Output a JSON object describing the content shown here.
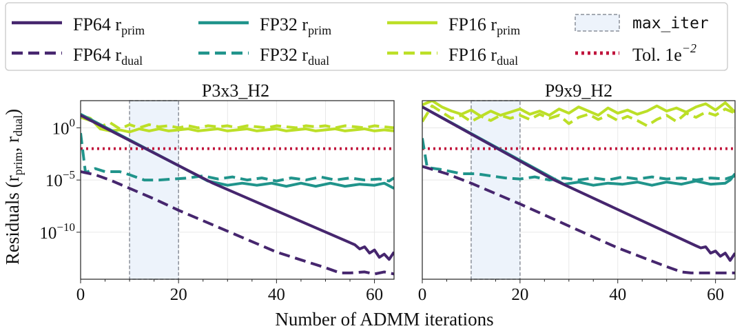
{
  "chart_data": {
    "type": "line",
    "figure_xlabel": "Number of ADMM iterations",
    "figure_ylabel": "Residuals (r_prim, r_dual)",
    "legend": {
      "placement": "top",
      "entries": [
        {
          "key": "fp64_prim",
          "label": "FP64 r",
          "sub": "prim",
          "color": "#46266e",
          "dash": "solid"
        },
        {
          "key": "fp64_dual",
          "label": "FP64 r",
          "sub": "dual",
          "color": "#46266e",
          "dash": "dashed"
        },
        {
          "key": "fp32_prim",
          "label": "FP32 r",
          "sub": "prim",
          "color": "#20948b",
          "dash": "solid"
        },
        {
          "key": "fp32_dual",
          "label": "FP32 r",
          "sub": "dual",
          "color": "#20948b",
          "dash": "dashed"
        },
        {
          "key": "fp16_prim",
          "label": "FP16 r",
          "sub": "prim",
          "color": "#bcdf27",
          "dash": "solid"
        },
        {
          "key": "fp16_dual",
          "label": "FP16 r",
          "sub": "dual",
          "color": "#bcdf27",
          "dash": "dashed"
        },
        {
          "key": "max_iter",
          "label": "max_iter",
          "color": "#8a8f99",
          "dash": "box"
        },
        {
          "key": "tol",
          "label": "Tol. 1e",
          "sup": "−2",
          "color": "#c0143c",
          "dash": "dotted"
        }
      ]
    },
    "panels": [
      {
        "title": "P3x3_H2",
        "xlim": [
          0,
          64
        ],
        "ylog_lim": [
          -14.5,
          2.6
        ],
        "xticks": [
          0,
          20,
          40,
          60
        ],
        "yticks": [
          {
            "exp": 0,
            "label": "10",
            "sup": "0"
          },
          {
            "exp": -5,
            "label": "10",
            "sup": "−5"
          },
          {
            "exp": -10,
            "label": "10",
            "sup": "−10"
          }
        ],
        "max_iter_region": [
          10,
          20
        ],
        "tol_log": -2,
        "series": {
          "fp64_prim": [
            [
              0,
              1.2
            ],
            [
              27,
              -5.3
            ],
            [
              56,
              -11.2
            ],
            [
              57,
              -11.6
            ],
            [
              58,
              -11.4
            ],
            [
              59,
              -12.0
            ],
            [
              60,
              -11.7
            ],
            [
              61,
              -12.4
            ],
            [
              62,
              -12.1
            ],
            [
              63,
              -12.6
            ],
            [
              64,
              -11.9
            ]
          ],
          "fp64_dual": [
            [
              0,
              -4.2
            ],
            [
              3,
              -4.5
            ],
            [
              6,
              -5.0
            ],
            [
              10,
              -5.8
            ],
            [
              15,
              -6.8
            ],
            [
              20,
              -7.9
            ],
            [
              30,
              -9.9
            ],
            [
              40,
              -11.9
            ],
            [
              50,
              -13.4
            ],
            [
              53,
              -13.9
            ],
            [
              55,
              -13.9
            ],
            [
              58,
              -13.8
            ],
            [
              60,
              -14.0
            ],
            [
              62,
              -13.8
            ],
            [
              64,
              -14.0
            ]
          ],
          "fp32_prim": [
            [
              0,
              1.3
            ],
            [
              26,
              -5.1
            ],
            [
              27,
              -5.2
            ],
            [
              30,
              -5.5
            ],
            [
              33,
              -5.3
            ],
            [
              36,
              -5.5
            ],
            [
              39,
              -5.3
            ],
            [
              42,
              -5.6
            ],
            [
              45,
              -5.3
            ],
            [
              48,
              -5.6
            ],
            [
              51,
              -5.3
            ],
            [
              54,
              -5.6
            ],
            [
              57,
              -5.4
            ],
            [
              60,
              -5.5
            ],
            [
              62,
              -5.3
            ],
            [
              64,
              -5.8
            ]
          ],
          "fp32_dual": [
            [
              0,
              -0.5
            ],
            [
              1,
              -4.3
            ],
            [
              3,
              -3.9
            ],
            [
              5,
              -4.2
            ],
            [
              8,
              -4.2
            ],
            [
              10,
              -4.5
            ],
            [
              13,
              -5.0
            ],
            [
              16,
              -5.0
            ],
            [
              19,
              -4.9
            ],
            [
              22,
              -4.8
            ],
            [
              25,
              -4.6
            ],
            [
              28,
              -4.9
            ],
            [
              31,
              -4.7
            ],
            [
              34,
              -5.0
            ],
            [
              37,
              -4.8
            ],
            [
              40,
              -5.1
            ],
            [
              43,
              -4.8
            ],
            [
              46,
              -5.0
            ],
            [
              49,
              -4.7
            ],
            [
              52,
              -5.0
            ],
            [
              55,
              -4.8
            ],
            [
              58,
              -5.0
            ],
            [
              61,
              -4.9
            ],
            [
              63,
              -5.1
            ],
            [
              64,
              -4.8
            ]
          ],
          "fp16_prim": [
            [
              0,
              1.2
            ],
            [
              2,
              0.9
            ],
            [
              4,
              -0.1
            ],
            [
              6,
              -0.3
            ],
            [
              8,
              -0.2
            ],
            [
              10,
              -0.4
            ],
            [
              12,
              -0.1
            ],
            [
              14,
              -0.3
            ],
            [
              16,
              -0.1
            ],
            [
              18,
              -0.3
            ],
            [
              20,
              -0.2
            ],
            [
              22,
              -0.1
            ],
            [
              24,
              -0.3
            ],
            [
              26,
              -0.2
            ],
            [
              28,
              -0.1
            ],
            [
              30,
              -0.3
            ],
            [
              32,
              -0.2
            ],
            [
              34,
              -0.1
            ],
            [
              36,
              -0.3
            ],
            [
              38,
              -0.2
            ],
            [
              40,
              -0.1
            ],
            [
              42,
              -0.3
            ],
            [
              44,
              -0.2
            ],
            [
              46,
              -0.1
            ],
            [
              48,
              -0.3
            ],
            [
              50,
              -0.2
            ],
            [
              52,
              -0.1
            ],
            [
              54,
              -0.3
            ],
            [
              56,
              -0.2
            ],
            [
              58,
              -0.1
            ],
            [
              60,
              -0.3
            ],
            [
              62,
              -0.2
            ],
            [
              64,
              -0.3
            ]
          ],
          "fp16_dual": [
            [
              0,
              1.0
            ],
            [
              2,
              0.7
            ],
            [
              4,
              0.1
            ],
            [
              6,
              0.5
            ],
            [
              8,
              -0.1
            ],
            [
              10,
              0.3
            ],
            [
              12,
              0.0
            ],
            [
              14,
              0.3
            ],
            [
              16,
              0.1
            ],
            [
              18,
              0.2
            ],
            [
              20,
              0.0
            ],
            [
              22,
              0.2
            ],
            [
              24,
              0.0
            ],
            [
              26,
              0.2
            ],
            [
              28,
              0.1
            ],
            [
              30,
              0.2
            ],
            [
              32,
              0.0
            ],
            [
              34,
              0.2
            ],
            [
              36,
              0.1
            ],
            [
              38,
              0.0
            ],
            [
              40,
              0.2
            ],
            [
              42,
              0.1
            ],
            [
              44,
              0.0
            ],
            [
              46,
              0.2
            ],
            [
              48,
              0.1
            ],
            [
              50,
              0.2
            ],
            [
              52,
              0.0
            ],
            [
              54,
              0.2
            ],
            [
              56,
              0.1
            ],
            [
              58,
              0.0
            ],
            [
              60,
              0.2
            ],
            [
              62,
              0.1
            ],
            [
              64,
              0.0
            ]
          ]
        }
      },
      {
        "title": "P9x9_H2",
        "xlim": [
          0,
          64
        ],
        "ylog_lim": [
          -14.5,
          2.6
        ],
        "xticks": [
          0,
          20,
          40,
          60
        ],
        "max_iter_region": [
          10,
          20
        ],
        "tol_log": -2,
        "series": {
          "fp64_prim": [
            [
              0,
              2.0
            ],
            [
              27,
              -5.0
            ],
            [
              56,
              -11.3
            ],
            [
              57,
              -11.5
            ],
            [
              58,
              -11.4
            ],
            [
              59,
              -12.0
            ],
            [
              60,
              -11.8
            ],
            [
              61,
              -12.3
            ],
            [
              62,
              -12.0
            ],
            [
              63,
              -12.7
            ],
            [
              64,
              -12.0
            ]
          ],
          "fp64_dual": [
            [
              0,
              -3.7
            ],
            [
              5,
              -4.4
            ],
            [
              10,
              -5.3
            ],
            [
              15,
              -6.3
            ],
            [
              20,
              -7.3
            ],
            [
              30,
              -9.4
            ],
            [
              40,
              -11.5
            ],
            [
              50,
              -13.3
            ],
            [
              53,
              -13.8
            ],
            [
              55,
              -13.9
            ],
            [
              64,
              -13.9
            ]
          ],
          "fp32_prim": [
            [
              0,
              2.0
            ],
            [
              29,
              -5.4
            ],
            [
              32,
              -5.2
            ],
            [
              35,
              -5.5
            ],
            [
              38,
              -5.3
            ],
            [
              41,
              -5.4
            ],
            [
              44,
              -5.2
            ],
            [
              47,
              -5.5
            ],
            [
              50,
              -5.2
            ],
            [
              53,
              -5.4
            ],
            [
              56,
              -5.1
            ],
            [
              59,
              -5.4
            ],
            [
              62,
              -5.3
            ],
            [
              63,
              -5.0
            ],
            [
              64,
              -4.4
            ]
          ],
          "fp32_dual": [
            [
              0,
              -1.0
            ],
            [
              1,
              -3.8
            ],
            [
              4,
              -4.0
            ],
            [
              8,
              -4.4
            ],
            [
              11,
              -4.4
            ],
            [
              14,
              -4.6
            ],
            [
              17,
              -4.8
            ],
            [
              20,
              -4.9
            ],
            [
              23,
              -4.7
            ],
            [
              26,
              -5.0
            ],
            [
              29,
              -4.8
            ],
            [
              32,
              -5.0
            ],
            [
              35,
              -4.8
            ],
            [
              38,
              -5.0
            ],
            [
              41,
              -4.7
            ],
            [
              44,
              -4.9
            ],
            [
              47,
              -4.7
            ],
            [
              50,
              -4.9
            ],
            [
              53,
              -4.8
            ],
            [
              56,
              -5.0
            ],
            [
              59,
              -4.8
            ],
            [
              62,
              -4.9
            ],
            [
              64,
              -4.6
            ]
          ],
          "fp16_prim": [
            [
              0,
              2.2
            ],
            [
              2,
              2.6
            ],
            [
              4,
              2.0
            ],
            [
              6,
              1.6
            ],
            [
              8,
              1.3
            ],
            [
              10,
              1.7
            ],
            [
              12,
              1.1
            ],
            [
              14,
              1.6
            ],
            [
              16,
              1.2
            ],
            [
              18,
              1.5
            ],
            [
              20,
              1.8
            ],
            [
              22,
              1.3
            ],
            [
              24,
              1.6
            ],
            [
              26,
              1.2
            ],
            [
              28,
              1.8
            ],
            [
              30,
              1.4
            ],
            [
              32,
              2.0
            ],
            [
              34,
              1.6
            ],
            [
              36,
              1.2
            ],
            [
              38,
              1.9
            ],
            [
              40,
              1.4
            ],
            [
              42,
              1.7
            ],
            [
              44,
              1.3
            ],
            [
              46,
              1.6
            ],
            [
              48,
              2.1
            ],
            [
              50,
              1.6
            ],
            [
              52,
              1.9
            ],
            [
              54,
              1.5
            ],
            [
              56,
              2.0
            ],
            [
              58,
              2.3
            ],
            [
              60,
              1.7
            ],
            [
              62,
              2.4
            ],
            [
              64,
              1.5
            ]
          ],
          "fp16_dual": [
            [
              0,
              0.6
            ],
            [
              2,
              2.1
            ],
            [
              4,
              1.5
            ],
            [
              6,
              0.9
            ],
            [
              8,
              1.2
            ],
            [
              10,
              0.6
            ],
            [
              12,
              1.1
            ],
            [
              14,
              0.7
            ],
            [
              16,
              1.2
            ],
            [
              18,
              0.9
            ],
            [
              20,
              1.2
            ],
            [
              22,
              0.8
            ],
            [
              24,
              1.3
            ],
            [
              26,
              0.9
            ],
            [
              28,
              1.2
            ],
            [
              30,
              0.4
            ],
            [
              32,
              1.0
            ],
            [
              34,
              1.3
            ],
            [
              36,
              0.8
            ],
            [
              38,
              1.2
            ],
            [
              40,
              0.7
            ],
            [
              42,
              1.1
            ],
            [
              44,
              0.7
            ],
            [
              46,
              0.2
            ],
            [
              48,
              0.8
            ],
            [
              50,
              1.2
            ],
            [
              52,
              0.6
            ],
            [
              54,
              1.4
            ],
            [
              56,
              1.0
            ],
            [
              58,
              1.5
            ],
            [
              60,
              1.2
            ],
            [
              62,
              1.8
            ],
            [
              64,
              1.4
            ]
          ]
        }
      }
    ]
  }
}
